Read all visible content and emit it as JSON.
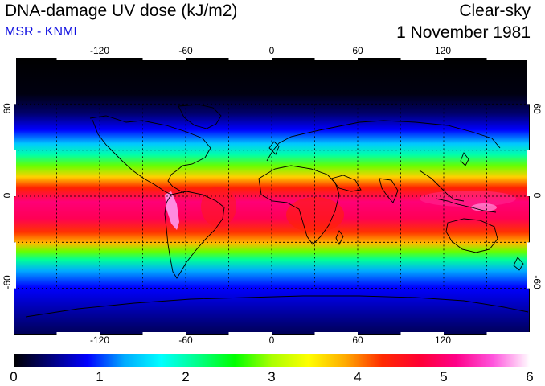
{
  "header": {
    "title": "DNA-damage UV dose (kJ/m2)",
    "subtitle": "MSR - KNMI",
    "condition": "Clear-sky",
    "date": "1 November 1981"
  },
  "map": {
    "lon_range": [
      -180,
      180
    ],
    "lat_range": [
      -90,
      90
    ],
    "lon_ticks": [
      "-120",
      "-60",
      "0",
      "60",
      "120"
    ],
    "lon_tick_values": [
      -120,
      -60,
      0,
      60,
      120
    ],
    "lat_ticks": [
      "60",
      "0",
      "-60"
    ],
    "lat_tick_values": [
      60,
      0,
      -60
    ],
    "grid_lon_step_deg": 30,
    "grid_lat_step_deg": 30,
    "grid_style": "dotted",
    "projection": "equirectangular",
    "coastlines": true
  },
  "colorbar": {
    "labels": [
      "0",
      "1",
      "2",
      "3",
      "4",
      "5",
      "6"
    ],
    "min": 0,
    "max": 6,
    "colors": [
      "#000000",
      "#00007a",
      "#0000ff",
      "#00aaff",
      "#00ffff",
      "#00ff88",
      "#00ff00",
      "#aaff00",
      "#ffff00",
      "#ffaa00",
      "#ff2a00",
      "#ff0033",
      "#ff0088",
      "#ff55dd",
      "#ffffff"
    ]
  },
  "colors": {
    "subtitle": "#1010e0",
    "max_dose_patch": "#ff99ee"
  }
}
